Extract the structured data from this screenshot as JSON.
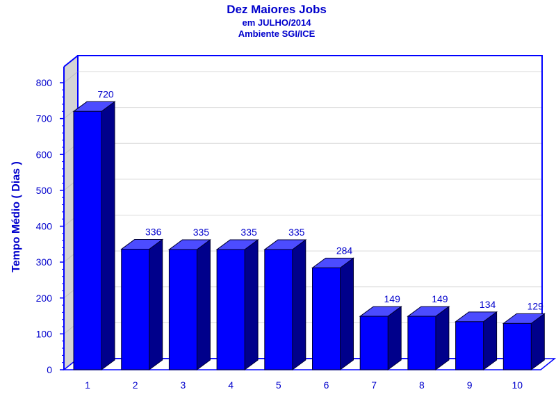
{
  "chart_data": {
    "type": "bar",
    "title": "Dez Maiores Jobs",
    "subtitle_lines": [
      "em JULHO/2014",
      "Ambiente SGI/ICE"
    ],
    "xlabel": "",
    "ylabel": "Tempo Médio ( Dias )",
    "categories": [
      "1",
      "2",
      "3",
      "4",
      "5",
      "6",
      "7",
      "8",
      "9",
      "10"
    ],
    "values": [
      720,
      336,
      335,
      335,
      335,
      284,
      149,
      149,
      134,
      129
    ],
    "ylim": [
      0,
      800
    ],
    "yticks": [
      0,
      100,
      200,
      300,
      400,
      500,
      600,
      700,
      800
    ],
    "grid": true,
    "legend": "none",
    "style": "3d",
    "colors": {
      "bar_front": "#0000ff",
      "bar_top": "#4c4cff",
      "bar_side": "#00008b",
      "text": "#0000cc",
      "axis": "#0000ff",
      "grid": "#d9d9d9",
      "side_wall": "#d4d4d4"
    }
  }
}
